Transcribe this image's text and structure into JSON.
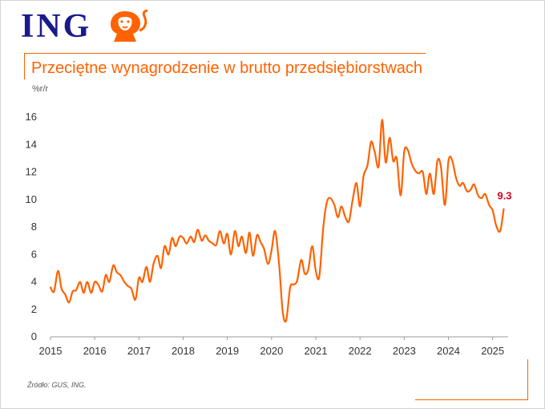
{
  "brand": {
    "name": "ING",
    "logo_icon": "lion-icon",
    "colors": {
      "primary": "#1a1a8c",
      "accent": "#ff6200",
      "highlight": "#d0021b"
    }
  },
  "chart_data": {
    "type": "line",
    "title": "Przeciętne wynagrodzenie w brutto przedsiębiorstwach",
    "unit": "%r/r",
    "source": "Źródło: GUS, ING.",
    "xlabel": "",
    "ylabel": "",
    "xlim": [
      2015,
      2025.35
    ],
    "ylim": [
      0,
      16
    ],
    "y_ticks": [
      0,
      2,
      4,
      6,
      8,
      10,
      12,
      14,
      16
    ],
    "x_ticks": [
      2015,
      2016,
      2017,
      2018,
      2019,
      2020,
      2021,
      2022,
      2023,
      2024,
      2025
    ],
    "grid": false,
    "legend": "none",
    "last_value_label": "9.3",
    "series": [
      {
        "color": "#ff6200",
        "x": [
          2015.0,
          2015.08,
          2015.17,
          2015.25,
          2015.33,
          2015.42,
          2015.5,
          2015.58,
          2015.67,
          2015.75,
          2015.83,
          2015.92,
          2016.0,
          2016.08,
          2016.17,
          2016.25,
          2016.33,
          2016.42,
          2016.5,
          2016.58,
          2016.67,
          2016.75,
          2016.83,
          2016.92,
          2017.0,
          2017.08,
          2017.17,
          2017.25,
          2017.33,
          2017.42,
          2017.5,
          2017.58,
          2017.67,
          2017.75,
          2017.83,
          2017.92,
          2018.0,
          2018.08,
          2018.17,
          2018.25,
          2018.33,
          2018.42,
          2018.5,
          2018.58,
          2018.67,
          2018.75,
          2018.83,
          2018.92,
          2019.0,
          2019.08,
          2019.17,
          2019.25,
          2019.33,
          2019.42,
          2019.5,
          2019.58,
          2019.67,
          2019.75,
          2019.83,
          2019.92,
          2020.0,
          2020.08,
          2020.17,
          2020.25,
          2020.33,
          2020.42,
          2020.5,
          2020.58,
          2020.67,
          2020.75,
          2020.83,
          2020.92,
          2021.0,
          2021.08,
          2021.17,
          2021.25,
          2021.33,
          2021.42,
          2021.5,
          2021.58,
          2021.67,
          2021.75,
          2021.83,
          2021.92,
          2022.0,
          2022.08,
          2022.17,
          2022.25,
          2022.33,
          2022.42,
          2022.5,
          2022.58,
          2022.67,
          2022.75,
          2022.83,
          2022.92,
          2023.0,
          2023.08,
          2023.17,
          2023.25,
          2023.33,
          2023.42,
          2023.5,
          2023.58,
          2023.67,
          2023.75,
          2023.83,
          2023.92,
          2024.0,
          2024.08,
          2024.17,
          2024.25,
          2024.33,
          2024.42,
          2024.5,
          2024.58,
          2024.67,
          2024.75,
          2024.83,
          2024.92,
          2025.0,
          2025.08,
          2025.17,
          2025.25
        ],
        "values": [
          3.6,
          3.3,
          4.8,
          3.5,
          3.1,
          2.5,
          3.3,
          3.4,
          4.0,
          3.2,
          4.0,
          3.2,
          4.0,
          3.8,
          3.3,
          4.5,
          4.0,
          5.2,
          4.7,
          4.5,
          4.0,
          3.7,
          3.5,
          2.7,
          4.3,
          4.0,
          5.1,
          4.0,
          5.3,
          5.9,
          5.0,
          6.6,
          6.0,
          7.2,
          6.6,
          7.3,
          7.2,
          6.8,
          7.3,
          6.9,
          7.8,
          7.0,
          7.4,
          7.0,
          6.8,
          6.7,
          7.7,
          6.8,
          7.5,
          6.0,
          7.7,
          6.6,
          7.3,
          6.1,
          7.6,
          5.9,
          7.4,
          6.9,
          6.4,
          5.3,
          6.3,
          7.7,
          5.3,
          1.9,
          1.2,
          3.6,
          3.8,
          4.1,
          5.6,
          4.6,
          4.9,
          6.6,
          4.8,
          4.4,
          8.0,
          9.8,
          10.1,
          9.6,
          8.7,
          9.5,
          8.7,
          8.4,
          9.9,
          11.2,
          9.5,
          11.7,
          12.5,
          14.2,
          13.5,
          12.4,
          15.8,
          12.7,
          14.5,
          12.8,
          13.0,
          10.3,
          13.5,
          13.6,
          12.6,
          12.1,
          11.9,
          12.0,
          10.4,
          11.9,
          10.4,
          12.8,
          12.4,
          9.6,
          12.8,
          12.9,
          11.6,
          11.0,
          11.2,
          10.6,
          10.7,
          11.1,
          10.3,
          10.1,
          10.4,
          9.6,
          9.2,
          8.1,
          7.7,
          9.3
        ]
      }
    ]
  }
}
